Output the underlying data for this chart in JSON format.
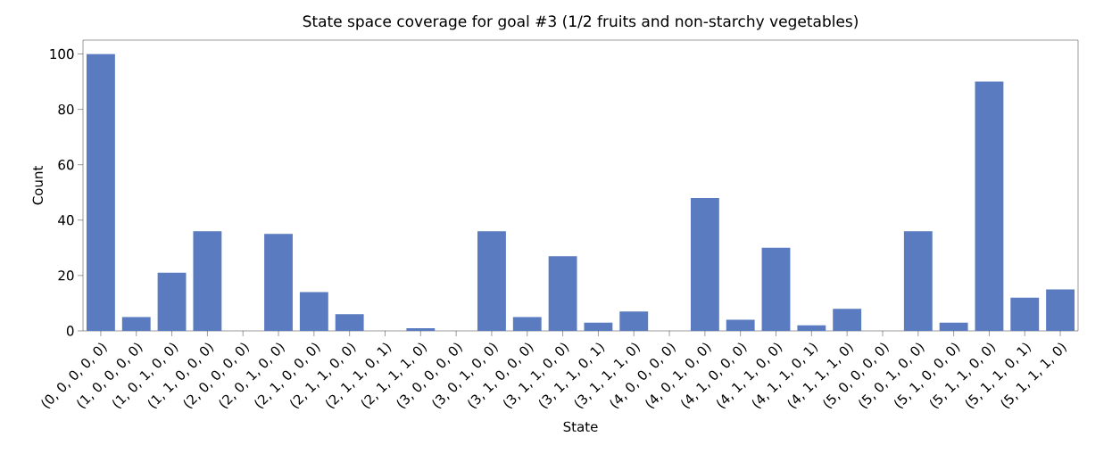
{
  "chart_data": {
    "type": "bar",
    "title": "State space coverage for goal #3 (1/2 fruits and non-starchy vegetables)",
    "xlabel": "State",
    "ylabel": "Count",
    "categories": [
      "(0, 0, 0, 0, 0)",
      "(1, 0, 0, 0, 0)",
      "(1, 0, 1, 0, 0)",
      "(1, 1, 0, 0, 0)",
      "(2, 0, 0, 0, 0)",
      "(2, 0, 1, 0, 0)",
      "(2, 1, 0, 0, 0)",
      "(2, 1, 1, 0, 0)",
      "(2, 1, 1, 0, 1)",
      "(2, 1, 1, 1, 0)",
      "(3, 0, 0, 0, 0)",
      "(3, 0, 1, 0, 0)",
      "(3, 1, 0, 0, 0)",
      "(3, 1, 1, 0, 0)",
      "(3, 1, 1, 0, 1)",
      "(3, 1, 1, 1, 0)",
      "(4, 0, 0, 0, 0)",
      "(4, 0, 1, 0, 0)",
      "(4, 1, 0, 0, 0)",
      "(4, 1, 1, 0, 0)",
      "(4, 1, 1, 0, 1)",
      "(4, 1, 1, 1, 0)",
      "(5, 0, 0, 0, 0)",
      "(5, 0, 1, 0, 0)",
      "(5, 1, 0, 0, 0)",
      "(5, 1, 1, 0, 0)",
      "(5, 1, 1, 0, 1)",
      "(5, 1, 1, 1, 0)"
    ],
    "values": [
      100,
      5,
      21,
      36,
      0,
      35,
      14,
      6,
      0,
      1,
      0,
      36,
      5,
      27,
      3,
      7,
      0,
      48,
      4,
      30,
      2,
      8,
      0,
      36,
      3,
      90,
      12,
      15
    ],
    "color": "#5a7bc0",
    "ylim": [
      0,
      105
    ],
    "yticks": [
      0,
      20,
      40,
      60,
      80,
      100
    ]
  }
}
